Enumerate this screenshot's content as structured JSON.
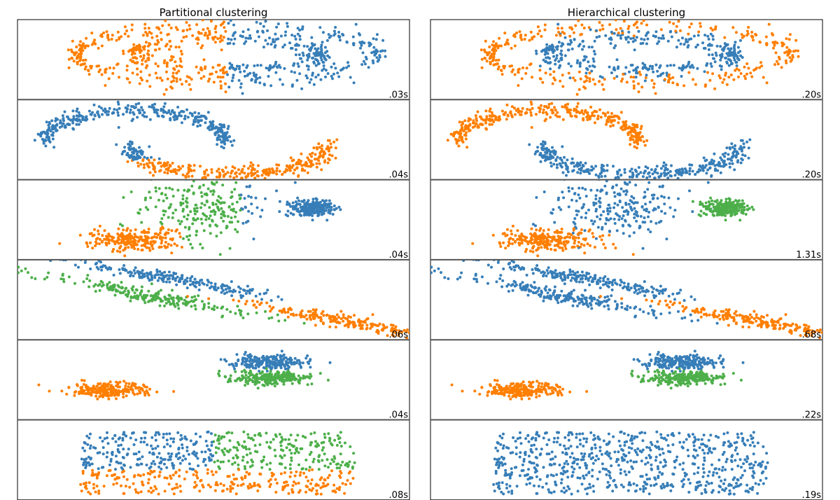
{
  "palette": {
    "c0": "#377eb8",
    "c1": "#ff7f00",
    "c2": "#4daf4a",
    "frame": "#000000"
  },
  "columns": [
    {
      "title": "Partitional clustering"
    },
    {
      "title": "Hierarchical clustering"
    }
  ],
  "chart_data": [
    {
      "type": "scatter",
      "dataset": "noisy_circles",
      "method": "partitional",
      "time": ".03s"
    },
    {
      "type": "scatter",
      "dataset": "noisy_moons",
      "method": "partitional",
      "time": ".04s"
    },
    {
      "type": "scatter",
      "dataset": "varied_blobs",
      "method": "partitional",
      "time": ".04s"
    },
    {
      "type": "scatter",
      "dataset": "anisotropic",
      "method": "partitional",
      "time": ".06s"
    },
    {
      "type": "scatter",
      "dataset": "blobs",
      "method": "partitional",
      "time": ".04s"
    },
    {
      "type": "scatter",
      "dataset": "no_structure",
      "method": "partitional",
      "time": ".08s"
    },
    {
      "type": "scatter",
      "dataset": "noisy_circles",
      "method": "hierarchical",
      "time": ".20s"
    },
    {
      "type": "scatter",
      "dataset": "noisy_moons",
      "method": "hierarchical",
      "time": ".20s"
    },
    {
      "type": "scatter",
      "dataset": "varied_blobs",
      "method": "hierarchical",
      "time": "1.31s"
    },
    {
      "type": "scatter",
      "dataset": "anisotropic",
      "method": "hierarchical",
      "time": ".68s"
    },
    {
      "type": "scatter",
      "dataset": "blobs",
      "method": "hierarchical",
      "time": ".22s"
    },
    {
      "type": "scatter",
      "dataset": "no_structure",
      "method": "hierarchical",
      "time": ".19s"
    }
  ]
}
